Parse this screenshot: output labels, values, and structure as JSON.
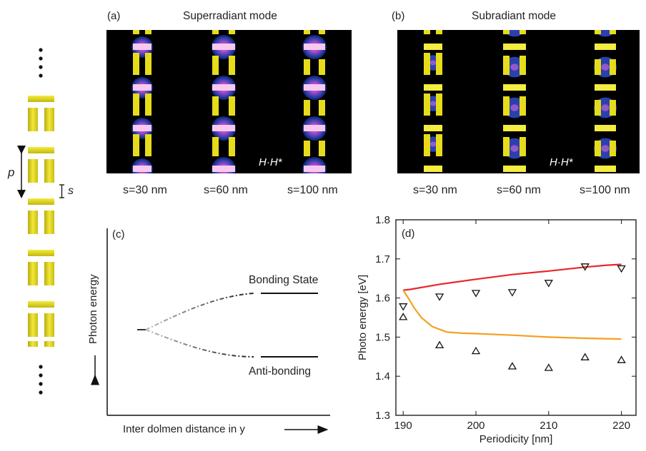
{
  "left_schematic": {
    "p_label": "p",
    "s_label": "s"
  },
  "panel_a": {
    "letter": "(a)",
    "title": "Superradiant mode",
    "hh_label": "H·H*",
    "s_labels": [
      "s=30 nm",
      "s=60 nm",
      "s=100 nm"
    ]
  },
  "panel_b": {
    "letter": "(b)",
    "title": "Subradiant mode",
    "hh_label": "H·H*",
    "s_labels": [
      "s=30 nm",
      "s=60 nm",
      "s=100 nm"
    ]
  },
  "panel_c": {
    "letter": "(c)",
    "ylabel": "Photon energy",
    "xlabel": "Inter dolmen distance in y",
    "bonding_label": "Bonding State",
    "antibonding_label": "Anti-bonding"
  },
  "chart_data": {
    "type": "line",
    "panel_letter": "(d)",
    "title": "",
    "xlabel": "Periodicity [nm]",
    "ylabel": "Photo energy [eV]",
    "xlim": [
      189,
      222
    ],
    "ylim": [
      1.3,
      1.8
    ],
    "xticks": [
      190,
      200,
      210,
      220
    ],
    "yticks": [
      1.3,
      1.4,
      1.5,
      1.6,
      1.7,
      1.8
    ],
    "grid": false,
    "series": [
      {
        "kind": "line",
        "color": "#e8262b",
        "x": [
          190,
          191,
          195,
          200,
          205,
          210,
          215,
          218,
          220
        ],
        "y": [
          1.62,
          1.622,
          1.635,
          1.648,
          1.66,
          1.669,
          1.679,
          1.684,
          1.686
        ]
      },
      {
        "kind": "line",
        "color": "#f5a020",
        "x": [
          190,
          190.7,
          191.5,
          192.5,
          194,
          196,
          198,
          200,
          205,
          210,
          215,
          220
        ],
        "y": [
          1.62,
          1.6,
          1.575,
          1.55,
          1.527,
          1.513,
          1.51,
          1.509,
          1.505,
          1.5,
          1.497,
          1.495
        ]
      },
      {
        "kind": "markers",
        "marker": "triangle-down",
        "x": [
          190,
          195,
          200,
          205,
          210,
          215,
          220
        ],
        "y": [
          1.578,
          1.603,
          1.612,
          1.614,
          1.638,
          1.68,
          1.675
        ]
      },
      {
        "kind": "markers",
        "marker": "triangle-up",
        "x": [
          190,
          195,
          200,
          205,
          210,
          215,
          220
        ],
        "y": [
          1.552,
          1.48,
          1.465,
          1.426,
          1.422,
          1.449,
          1.442
        ]
      }
    ]
  },
  "colors": {
    "dolmen_yellow": "#e6dc1a",
    "field_blue": "#2c44b6",
    "field_magenta": "#d868d8",
    "map_background": "#000000"
  }
}
